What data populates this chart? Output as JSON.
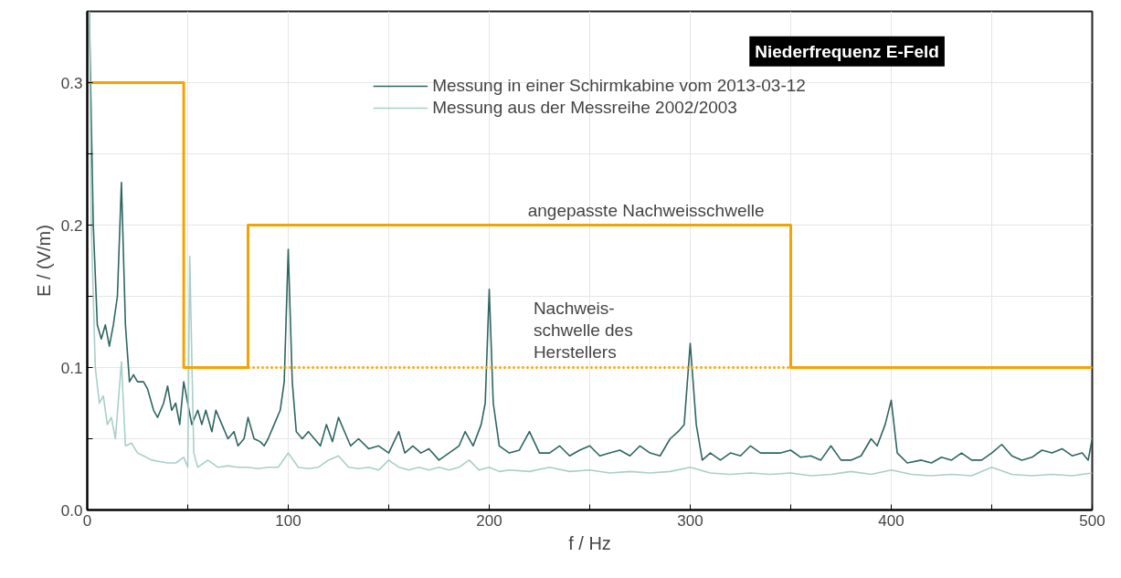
{
  "chart_data": {
    "type": "line",
    "title": "Niederfrequenz E-Feld",
    "xlabel": "f / Hz",
    "ylabel": "E / (V/m)",
    "xlim": [
      0,
      500
    ],
    "ylim": [
      0,
      0.35
    ],
    "xticks": [
      0,
      {
        "value": 50,
        "label": null
      },
      100,
      {
        "value": 150,
        "label": null
      },
      200,
      {
        "value": 250,
        "label": null
      },
      300,
      {
        "value": 350,
        "label": null
      },
      400,
      {
        "value": 450,
        "label": null
      },
      500
    ],
    "yticks": [
      {
        "value": 0,
        "label": "0.0"
      },
      {
        "value": 0.05,
        "label": null
      },
      0.1,
      {
        "value": 0.15,
        "label": null
      },
      0.2,
      {
        "value": 0.25,
        "label": null
      },
      0.3
    ],
    "grid": true,
    "legend": "top",
    "line_style": "solid",
    "marker": "none",
    "series": [
      {
        "name": "Messung in einer Schirmkabine vom 2013-03-12",
        "color": "#2e6660",
        "x": [
          1,
          3,
          5,
          7,
          9,
          11,
          13,
          15,
          17,
          19,
          21,
          23,
          25,
          28,
          30,
          33,
          35,
          38,
          40,
          42,
          44,
          46,
          48,
          50,
          52,
          55,
          57,
          59,
          62,
          64,
          67,
          70,
          73,
          75,
          78,
          80,
          83,
          86,
          88,
          90,
          93,
          96,
          98,
          100,
          102,
          104,
          107,
          110,
          113,
          116,
          119,
          122,
          125,
          128,
          131,
          135,
          140,
          145,
          150,
          155,
          158,
          162,
          166,
          170,
          175,
          180,
          185,
          188,
          192,
          196,
          198,
          200,
          202,
          205,
          210,
          215,
          220,
          225,
          230,
          235,
          240,
          245,
          250,
          255,
          260,
          265,
          270,
          275,
          280,
          285,
          290,
          294,
          297,
          300,
          303,
          306,
          310,
          315,
          320,
          325,
          330,
          335,
          340,
          345,
          350,
          355,
          360,
          365,
          370,
          375,
          380,
          385,
          390,
          393,
          397,
          400,
          403,
          408,
          415,
          420,
          425,
          430,
          435,
          440,
          445,
          450,
          455,
          460,
          465,
          470,
          475,
          480,
          485,
          490,
          495,
          498,
          500
        ],
        "values": [
          0.35,
          0.2,
          0.13,
          0.12,
          0.13,
          0.115,
          0.13,
          0.15,
          0.23,
          0.13,
          0.09,
          0.095,
          0.09,
          0.09,
          0.085,
          0.07,
          0.065,
          0.075,
          0.087,
          0.07,
          0.075,
          0.06,
          0.09,
          0.075,
          0.06,
          0.07,
          0.06,
          0.07,
          0.055,
          0.07,
          0.06,
          0.05,
          0.055,
          0.045,
          0.05,
          0.065,
          0.05,
          0.048,
          0.045,
          0.05,
          0.06,
          0.07,
          0.09,
          0.183,
          0.09,
          0.055,
          0.05,
          0.055,
          0.05,
          0.045,
          0.06,
          0.048,
          0.065,
          0.055,
          0.045,
          0.05,
          0.043,
          0.045,
          0.04,
          0.055,
          0.04,
          0.045,
          0.04,
          0.043,
          0.035,
          0.04,
          0.045,
          0.055,
          0.045,
          0.06,
          0.075,
          0.155,
          0.075,
          0.045,
          0.04,
          0.042,
          0.055,
          0.04,
          0.04,
          0.045,
          0.038,
          0.042,
          0.045,
          0.038,
          0.04,
          0.042,
          0.038,
          0.045,
          0.04,
          0.038,
          0.05,
          0.055,
          0.06,
          0.117,
          0.06,
          0.035,
          0.04,
          0.035,
          0.04,
          0.038,
          0.045,
          0.04,
          0.04,
          0.04,
          0.042,
          0.037,
          0.038,
          0.035,
          0.045,
          0.035,
          0.035,
          0.038,
          0.05,
          0.045,
          0.06,
          0.077,
          0.04,
          0.033,
          0.035,
          0.033,
          0.037,
          0.035,
          0.04,
          0.035,
          0.035,
          0.04,
          0.046,
          0.038,
          0.035,
          0.037,
          0.042,
          0.04,
          0.043,
          0.038,
          0.04,
          0.035,
          0.05
        ]
      },
      {
        "name": "Messung aus der Messreihe 2002/2003",
        "color": "#a8cfc9",
        "x": [
          1,
          2,
          4,
          6,
          8,
          10,
          12,
          14,
          17,
          19,
          22,
          25,
          28,
          32,
          36,
          40,
          44,
          48,
          50,
          51,
          53,
          55,
          60,
          65,
          70,
          75,
          80,
          85,
          90,
          95,
          100,
          105,
          110,
          115,
          120,
          125,
          130,
          135,
          140,
          145,
          150,
          155,
          160,
          165,
          170,
          175,
          180,
          185,
          190,
          195,
          200,
          205,
          210,
          220,
          230,
          240,
          250,
          260,
          270,
          280,
          290,
          300,
          310,
          320,
          330,
          340,
          350,
          360,
          370,
          380,
          390,
          400,
          410,
          420,
          430,
          440,
          450,
          460,
          470,
          480,
          490,
          500
        ],
        "values": [
          0.35,
          0.2,
          0.1,
          0.075,
          0.08,
          0.06,
          0.065,
          0.05,
          0.104,
          0.045,
          0.047,
          0.04,
          0.038,
          0.035,
          0.034,
          0.033,
          0.033,
          0.037,
          0.03,
          0.178,
          0.04,
          0.03,
          0.035,
          0.03,
          0.031,
          0.03,
          0.03,
          0.029,
          0.03,
          0.03,
          0.04,
          0.03,
          0.029,
          0.03,
          0.035,
          0.038,
          0.03,
          0.029,
          0.03,
          0.028,
          0.035,
          0.03,
          0.028,
          0.03,
          0.028,
          0.03,
          0.028,
          0.03,
          0.035,
          0.028,
          0.03,
          0.027,
          0.028,
          0.027,
          0.03,
          0.027,
          0.028,
          0.026,
          0.027,
          0.026,
          0.027,
          0.03,
          0.026,
          0.025,
          0.026,
          0.025,
          0.026,
          0.024,
          0.025,
          0.027,
          0.025,
          0.028,
          0.025,
          0.024,
          0.025,
          0.024,
          0.03,
          0.025,
          0.024,
          0.025,
          0.024,
          0.026
        ]
      },
      {
        "color": "#f5a300",
        "x": [
          0,
          48,
          48,
          80,
          80,
          350,
          350,
          500
        ],
        "values": [
          0.3,
          0.3,
          0.1,
          0.1,
          0.2,
          0.2,
          0.1,
          0.1
        ]
      },
      {
        "color": "#f5a300",
        "line_style": "dotted",
        "x": [
          80,
          350
        ],
        "values": [
          0.1,
          0.1
        ]
      }
    ],
    "annotations": [
      {
        "text": "angepasste Nachweisschwelle",
        "x": 278,
        "y": 0.2
      },
      {
        "text": "Nachweis-\nschwelle des\nHerstellers",
        "x": 222,
        "y": 0.1
      }
    ]
  }
}
